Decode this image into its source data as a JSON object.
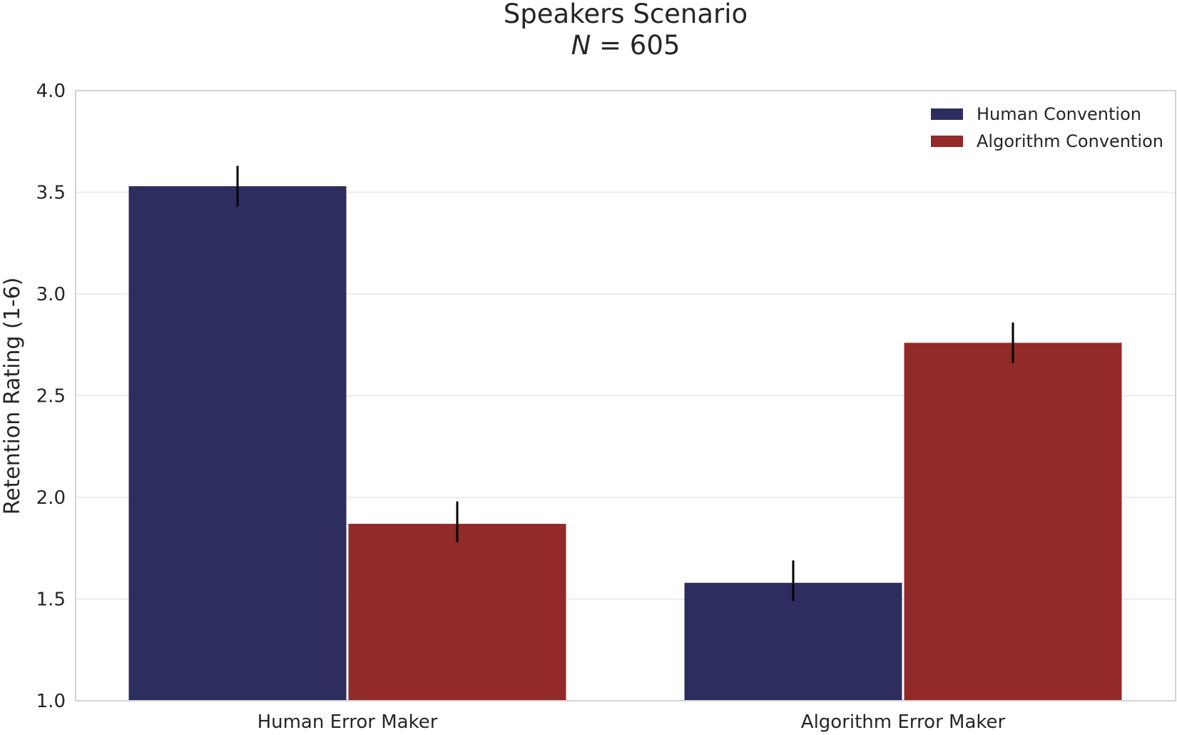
{
  "chart_data": {
    "type": "bar",
    "title": "Speakers Scenario",
    "subtitle_italic": "N",
    "subtitle_rest": " = 605",
    "xlabel": "",
    "ylabel": "Retention Rating (1-6)",
    "ylim": [
      1.0,
      4.0
    ],
    "yticks": [
      1.0,
      1.5,
      2.0,
      2.5,
      3.0,
      3.5,
      4.0
    ],
    "ytick_labels": [
      "1.0",
      "1.5",
      "2.0",
      "2.5",
      "3.0",
      "3.5",
      "4.0"
    ],
    "grid": true,
    "legend_position": "top-right",
    "categories": [
      "Human Error Maker",
      "Algorithm Error Maker"
    ],
    "series": [
      {
        "name": "Human Convention",
        "color": "#2d2d5f",
        "values": [
          3.53,
          1.58
        ],
        "err_low": [
          3.43,
          1.49
        ],
        "err_high": [
          3.63,
          1.69
        ]
      },
      {
        "name": "Algorithm Convention",
        "color": "#912a28",
        "values": [
          1.87,
          2.76
        ],
        "err_low": [
          1.78,
          2.66
        ],
        "err_high": [
          1.98,
          2.86
        ]
      }
    ]
  }
}
